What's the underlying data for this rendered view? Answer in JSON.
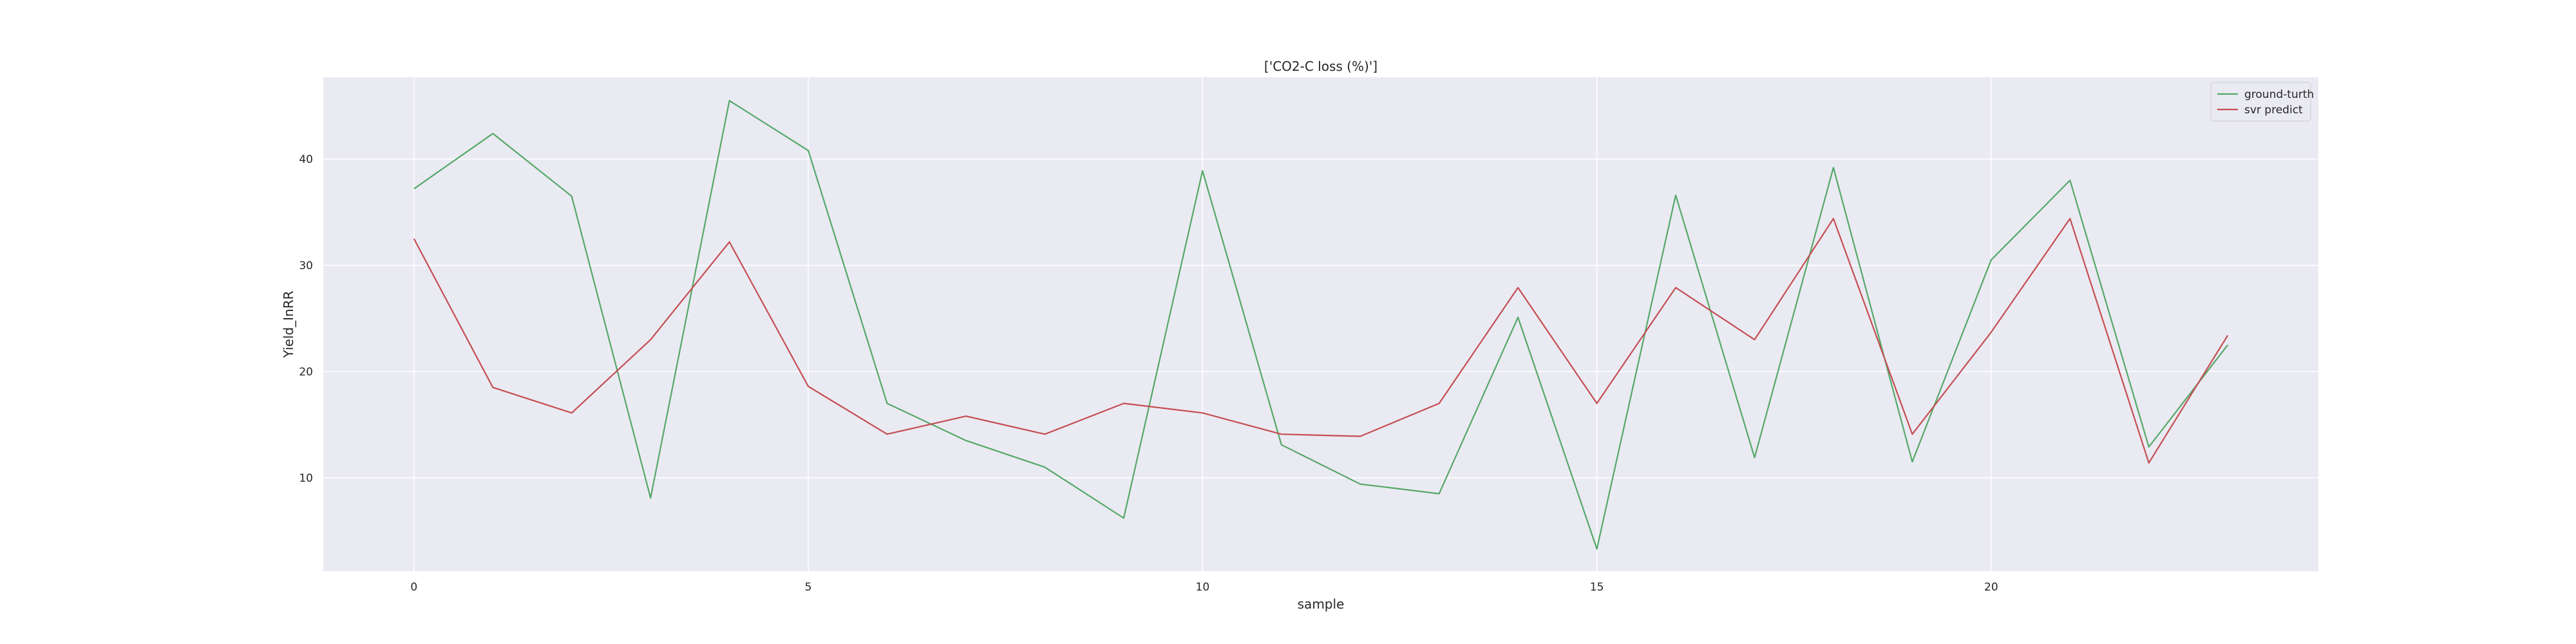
{
  "chart_data": {
    "type": "line",
    "title": "['CO2-C loss (%)']",
    "xlabel": "sample",
    "ylabel": "Yield_InRR",
    "xlim": [
      -1.15,
      24.15
    ],
    "ylim": [
      1.2,
      47.7
    ],
    "xticks": [
      0,
      5,
      10,
      15,
      20
    ],
    "yticks": [
      10,
      20,
      30,
      40
    ],
    "grid": true,
    "legend_position": "top-right",
    "x": [
      0,
      1,
      2,
      3,
      4,
      5,
      6,
      7,
      8,
      9,
      10,
      11,
      12,
      13,
      14,
      15,
      16,
      17,
      18,
      19,
      20,
      21,
      22,
      23
    ],
    "series": [
      {
        "name": "ground-turth",
        "color": "#55a868",
        "values": [
          37.2,
          42.4,
          36.5,
          8.1,
          45.5,
          40.8,
          17.0,
          13.5,
          11.0,
          6.2,
          38.9,
          13.1,
          9.4,
          8.5,
          25.1,
          3.3,
          36.6,
          11.9,
          39.2,
          11.5,
          30.5,
          38.0,
          12.9,
          22.5
        ]
      },
      {
        "name": "svr predict",
        "color": "#c44e52",
        "values": [
          32.5,
          18.5,
          16.1,
          23.0,
          32.2,
          18.6,
          14.1,
          15.8,
          14.1,
          17.0,
          16.1,
          14.1,
          13.9,
          17.0,
          27.9,
          17.0,
          27.9,
          23.0,
          34.4,
          14.1,
          23.7,
          34.4,
          11.4,
          23.4
        ]
      }
    ]
  }
}
